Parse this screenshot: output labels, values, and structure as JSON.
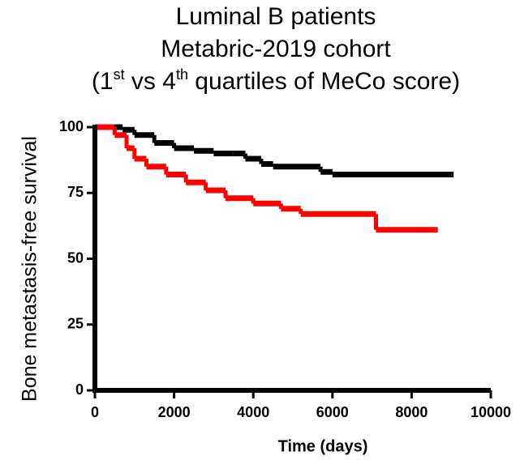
{
  "chart_data": {
    "type": "step",
    "title": [
      [
        "Luminal B patients"
      ],
      [
        "Metabric-2019 cohort"
      ],
      [
        "(1",
        {
          "sup": "st"
        },
        " vs 4",
        {
          "sup": "th"
        },
        " quartiles of MeCo score)"
      ]
    ],
    "x_label": "Time (days)",
    "y_label": "Bone metastasis-free survival",
    "xlim": [
      0,
      10000
    ],
    "xticks": [
      0,
      2000,
      4000,
      6000,
      8000,
      10000
    ],
    "ylim": [
      0,
      100
    ],
    "yticks": [
      0,
      25,
      50,
      75,
      100
    ],
    "series": [
      {
        "color": "#000000",
        "x": [
          0,
          300,
          700,
          1000,
          1500,
          2000,
          2500,
          3000,
          3500,
          3800,
          4200,
          4500,
          5700,
          6000,
          9000
        ],
        "values": [
          100,
          100,
          99,
          97,
          94,
          92,
          91,
          90,
          90,
          88,
          86,
          85,
          83,
          82,
          82
        ]
      },
      {
        "color": "#ff0000",
        "x": [
          0,
          500,
          800,
          1000,
          1300,
          1800,
          2300,
          2800,
          3300,
          4000,
          4700,
          5200,
          7100,
          8600
        ],
        "values": [
          100,
          97,
          92,
          88,
          85,
          82,
          79,
          76,
          73,
          71,
          69,
          67,
          61,
          61
        ]
      }
    ]
  }
}
